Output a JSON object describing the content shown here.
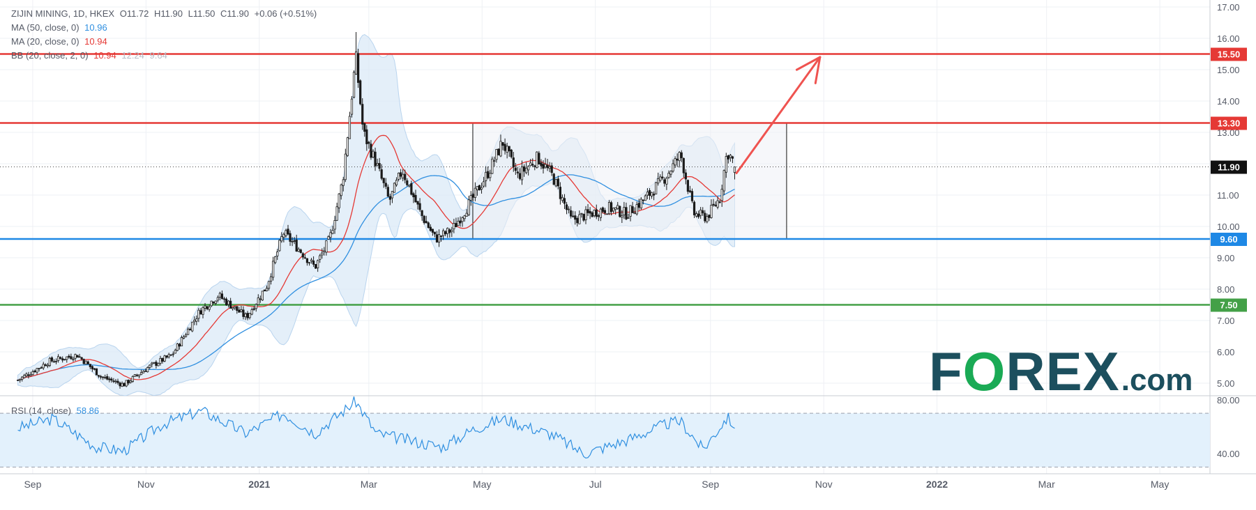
{
  "header": {
    "symbol": "ZIJIN MINING, 1D, HKEX",
    "ohlc": [
      "O11.72",
      "H11.90",
      "L11.50",
      "C11.90",
      "+0.06 (+0.51%)"
    ],
    "ma50_label": "MA (50, close, 0)",
    "ma50_value": "10.96",
    "ma20_label": "MA (20, close, 0)",
    "ma20_value": "10.94",
    "bb_label": "BB (20, close, 2, 0)",
    "bb_values": [
      "10.94",
      "12.24",
      "9.64"
    ]
  },
  "rsi": {
    "label": "RSI (14, close)",
    "value": "58.86"
  },
  "logo": {
    "text_a": "F",
    "text_o": "O",
    "text_b": "REX",
    "text_c": ".com"
  },
  "colors": {
    "candle": "#1a1a1a",
    "resistance": "#e53935",
    "support": "#1e88e5",
    "floor": "#43a047",
    "ma20": "#e53935",
    "ma50": "#2f8fe0",
    "bb_fill": "#dbeaf7",
    "rsi_line": "#2f8fe0",
    "rsi_fill": "#e3f1fc",
    "logo_dark": "#1c4f5e",
    "logo_green": "#1aaa55"
  },
  "chart_data": {
    "type": "candlestick",
    "x_ticks": [
      "Sep",
      "Nov",
      "2021",
      "Mar",
      "May",
      "Jul",
      "Sep",
      "Nov",
      "2022",
      "Mar",
      "May"
    ],
    "y_ticks": [
      "17.00",
      "16.00",
      "15.00",
      "14.00",
      "13.00",
      "12.00",
      "11.00",
      "10.00",
      "9.00",
      "8.00",
      "7.00",
      "6.00",
      "5.00"
    ],
    "ylim": [
      4.6,
      17.0
    ],
    "rsi_ticks": [
      "80.00",
      "40.00"
    ],
    "rsi_ylim": [
      25,
      82
    ],
    "rsi_bands": [
      70,
      30
    ],
    "last_price": 11.9,
    "last_price_label": "11.90",
    "levels": [
      {
        "value": 15.5,
        "label": "15.50",
        "color": "#e53935"
      },
      {
        "value": 13.3,
        "label": "13.30",
        "color": "#e53935"
      },
      {
        "value": 9.6,
        "label": "9.60",
        "color": "#1e88e5"
      },
      {
        "value": 7.5,
        "label": "7.50",
        "color": "#43a047"
      }
    ],
    "range_box": {
      "from": "2021-04-26",
      "to": "2021-10-12",
      "low": 9.6,
      "high": 13.3
    },
    "forecast_arrow": {
      "from": {
        "date": "2021-09-15",
        "price": 11.7
      },
      "to": {
        "date": "2021-10-30",
        "price": 15.4
      }
    },
    "price_key_points": [
      [
        "2020-08-24",
        5.1
      ],
      [
        "2020-09-10",
        5.7
      ],
      [
        "2020-09-25",
        5.9
      ],
      [
        "2020-10-08",
        5.2
      ],
      [
        "2020-10-20",
        4.95
      ],
      [
        "2020-11-02",
        5.5
      ],
      [
        "2020-11-15",
        5.9
      ],
      [
        "2020-11-30",
        7.3
      ],
      [
        "2020-12-10",
        7.8
      ],
      [
        "2020-12-25",
        7.1
      ],
      [
        "2021-01-05",
        8.1
      ],
      [
        "2021-01-14",
        9.8
      ],
      [
        "2021-01-22",
        9.3
      ],
      [
        "2021-01-31",
        8.7
      ],
      [
        "2021-02-08",
        9.6
      ],
      [
        "2021-02-15",
        11.5
      ],
      [
        "2021-02-22",
        15.4
      ],
      [
        "2021-02-26",
        13.0
      ],
      [
        "2021-03-05",
        12.0
      ],
      [
        "2021-03-12",
        10.8
      ],
      [
        "2021-03-19",
        11.8
      ],
      [
        "2021-03-29",
        10.4
      ],
      [
        "2021-04-06",
        9.6
      ],
      [
        "2021-04-15",
        9.9
      ],
      [
        "2021-04-26",
        10.9
      ],
      [
        "2021-05-05",
        11.8
      ],
      [
        "2021-05-12",
        12.7
      ],
      [
        "2021-05-20",
        11.6
      ],
      [
        "2021-05-31",
        12.2
      ],
      [
        "2021-06-08",
        11.6
      ],
      [
        "2021-06-18",
        10.2
      ],
      [
        "2021-06-28",
        10.4
      ],
      [
        "2021-07-08",
        10.6
      ],
      [
        "2021-07-18",
        10.4
      ],
      [
        "2021-07-28",
        10.9
      ],
      [
        "2021-08-08",
        11.6
      ],
      [
        "2021-08-16",
        12.3
      ],
      [
        "2021-08-23",
        10.4
      ],
      [
        "2021-08-30",
        10.3
      ],
      [
        "2021-09-06",
        10.9
      ],
      [
        "2021-09-10",
        12.4
      ],
      [
        "2021-09-15",
        11.9
      ]
    ],
    "rsi_key_points": [
      [
        "2020-08-24",
        59
      ],
      [
        "2020-09-12",
        66
      ],
      [
        "2020-10-05",
        45
      ],
      [
        "2020-10-20",
        42
      ],
      [
        "2020-11-10",
        62
      ],
      [
        "2020-12-01",
        72
      ],
      [
        "2020-12-25",
        55
      ],
      [
        "2021-01-14",
        70
      ],
      [
        "2021-01-31",
        55
      ],
      [
        "2021-02-22",
        79
      ],
      [
        "2021-03-05",
        55
      ],
      [
        "2021-03-29",
        48
      ],
      [
        "2021-04-10",
        45
      ],
      [
        "2021-04-26",
        58
      ],
      [
        "2021-05-12",
        66
      ],
      [
        "2021-06-08",
        54
      ],
      [
        "2021-06-25",
        40
      ],
      [
        "2021-07-18",
        50
      ],
      [
        "2021-08-08",
        62
      ],
      [
        "2021-08-16",
        64
      ],
      [
        "2021-08-28",
        43
      ],
      [
        "2021-09-10",
        67
      ],
      [
        "2021-09-15",
        59
      ]
    ]
  }
}
